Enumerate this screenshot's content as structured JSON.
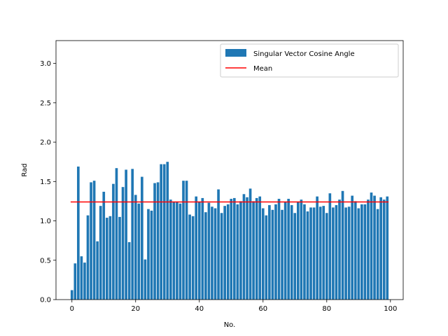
{
  "chart_data": {
    "type": "bar",
    "title": "",
    "xlabel": "No.",
    "ylabel": "Rad",
    "xlim": [
      -5,
      104
    ],
    "ylim": [
      0,
      3.29
    ],
    "xticks": [
      0,
      20,
      40,
      60,
      80,
      100
    ],
    "yticks": [
      0.0,
      0.5,
      1.0,
      1.5,
      2.0,
      2.5,
      3.0
    ],
    "xtick_labels": [
      "0",
      "20",
      "40",
      "60",
      "80",
      "100"
    ],
    "ytick_labels": [
      "0.0",
      "0.5",
      "1.0",
      "1.5",
      "2.0",
      "2.5",
      "3.0"
    ],
    "grid": false,
    "legend_position": "top-right",
    "series": [
      {
        "name": "Singular Vector Cosine Angle",
        "type": "bar",
        "color": "#1f77b4",
        "x": [
          0,
          1,
          2,
          3,
          4,
          5,
          6,
          7,
          8,
          9,
          10,
          11,
          12,
          13,
          14,
          15,
          16,
          17,
          18,
          19,
          20,
          21,
          22,
          23,
          24,
          25,
          26,
          27,
          28,
          29,
          30,
          31,
          32,
          33,
          34,
          35,
          36,
          37,
          38,
          39,
          40,
          41,
          42,
          43,
          44,
          45,
          46,
          47,
          48,
          49,
          50,
          51,
          52,
          53,
          54,
          55,
          56,
          57,
          58,
          59,
          60,
          61,
          62,
          63,
          64,
          65,
          66,
          67,
          68,
          69,
          70,
          71,
          72,
          73,
          74,
          75,
          76,
          77,
          78,
          79,
          80,
          81,
          82,
          83,
          84,
          85,
          86,
          87,
          88,
          89,
          90,
          91,
          92,
          93,
          94,
          95,
          96,
          97,
          98,
          99
        ],
        "values": [
          0.12,
          0.46,
          1.69,
          0.55,
          0.47,
          1.07,
          1.49,
          1.51,
          0.74,
          1.19,
          1.37,
          1.04,
          1.06,
          1.47,
          1.67,
          1.05,
          1.43,
          1.65,
          0.73,
          1.66,
          1.33,
          1.22,
          1.56,
          0.51,
          1.15,
          1.13,
          1.48,
          1.49,
          1.72,
          1.72,
          1.75,
          1.27,
          1.24,
          1.24,
          1.22,
          1.51,
          1.51,
          1.08,
          1.06,
          1.31,
          1.24,
          1.29,
          1.11,
          1.23,
          1.18,
          1.16,
          1.4,
          1.1,
          1.19,
          1.21,
          1.28,
          1.29,
          1.21,
          1.25,
          1.34,
          1.3,
          1.41,
          1.25,
          1.29,
          1.31,
          1.16,
          1.07,
          1.2,
          1.14,
          1.21,
          1.28,
          1.14,
          1.24,
          1.28,
          1.2,
          1.1,
          1.24,
          1.27,
          1.21,
          1.12,
          1.17,
          1.17,
          1.31,
          1.18,
          1.19,
          1.1,
          1.35,
          1.17,
          1.2,
          1.27,
          1.38,
          1.17,
          1.18,
          1.32,
          1.25,
          1.16,
          1.21,
          1.21,
          1.27,
          1.36,
          1.32,
          1.15,
          1.3,
          1.27,
          1.31
        ]
      },
      {
        "name": "Mean",
        "type": "hline",
        "color": "#ff0000",
        "value": 1.24,
        "x_range": [
          -0.4,
          99.4
        ]
      }
    ]
  }
}
